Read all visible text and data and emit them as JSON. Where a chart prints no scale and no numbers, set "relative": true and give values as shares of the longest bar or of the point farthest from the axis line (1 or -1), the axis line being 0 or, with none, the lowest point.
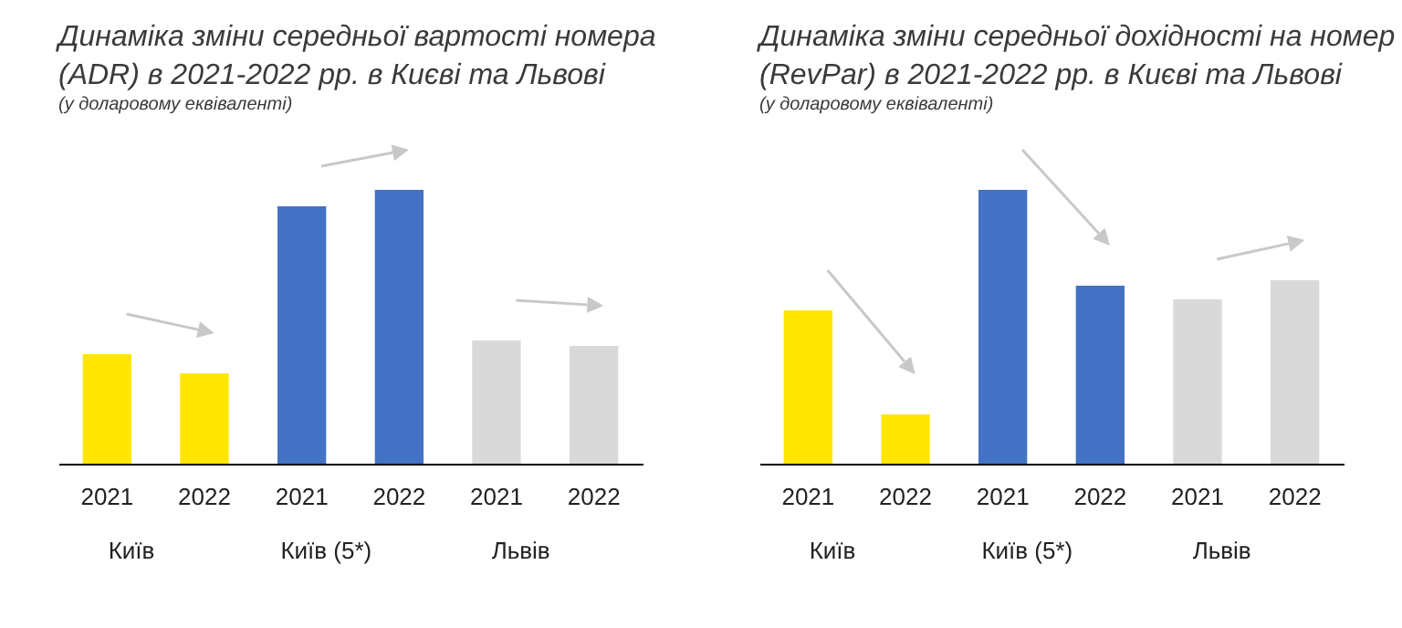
{
  "chart_data": [
    {
      "type": "bar",
      "title": "Динаміка зміни середньої вартості номера (ADR) в 2021-2022 рр. в Києві та Львові",
      "subtitle": "(у доларовому еквіваленті)",
      "categories": [
        "2021",
        "2022",
        "2021",
        "2022",
        "2021",
        "2022"
      ],
      "values": [
        0.4,
        0.33,
        0.94,
        1,
        0.45,
        0.43
      ],
      "colors": [
        "#ffe600",
        "#ffe600",
        "#4472c4",
        "#4472c4",
        "#d9d9d9",
        "#d9d9d9"
      ],
      "relative": true,
      "annotations": [
        "Київ",
        "Київ (5*)",
        "Львів"
      ]
    },
    {
      "type": "bar",
      "title": "Динаміка зміни середньої дохідності на номер (RevPar) в 2021-2022 рр. в Києві та Львові",
      "subtitle": "(у доларовому еквіваленті)",
      "categories": [
        "2021",
        "2022",
        "2021",
        "2022",
        "2021",
        "2022"
      ],
      "values": [
        0.56,
        0.18,
        1,
        0.65,
        0.6,
        0.67
      ],
      "colors": [
        "#ffe600",
        "#ffe600",
        "#4472c4",
        "#4472c4",
        "#d9d9d9",
        "#d9d9d9"
      ],
      "relative": true,
      "annotations": [
        "Київ",
        "Київ (5*)",
        "Львів"
      ]
    }
  ]
}
